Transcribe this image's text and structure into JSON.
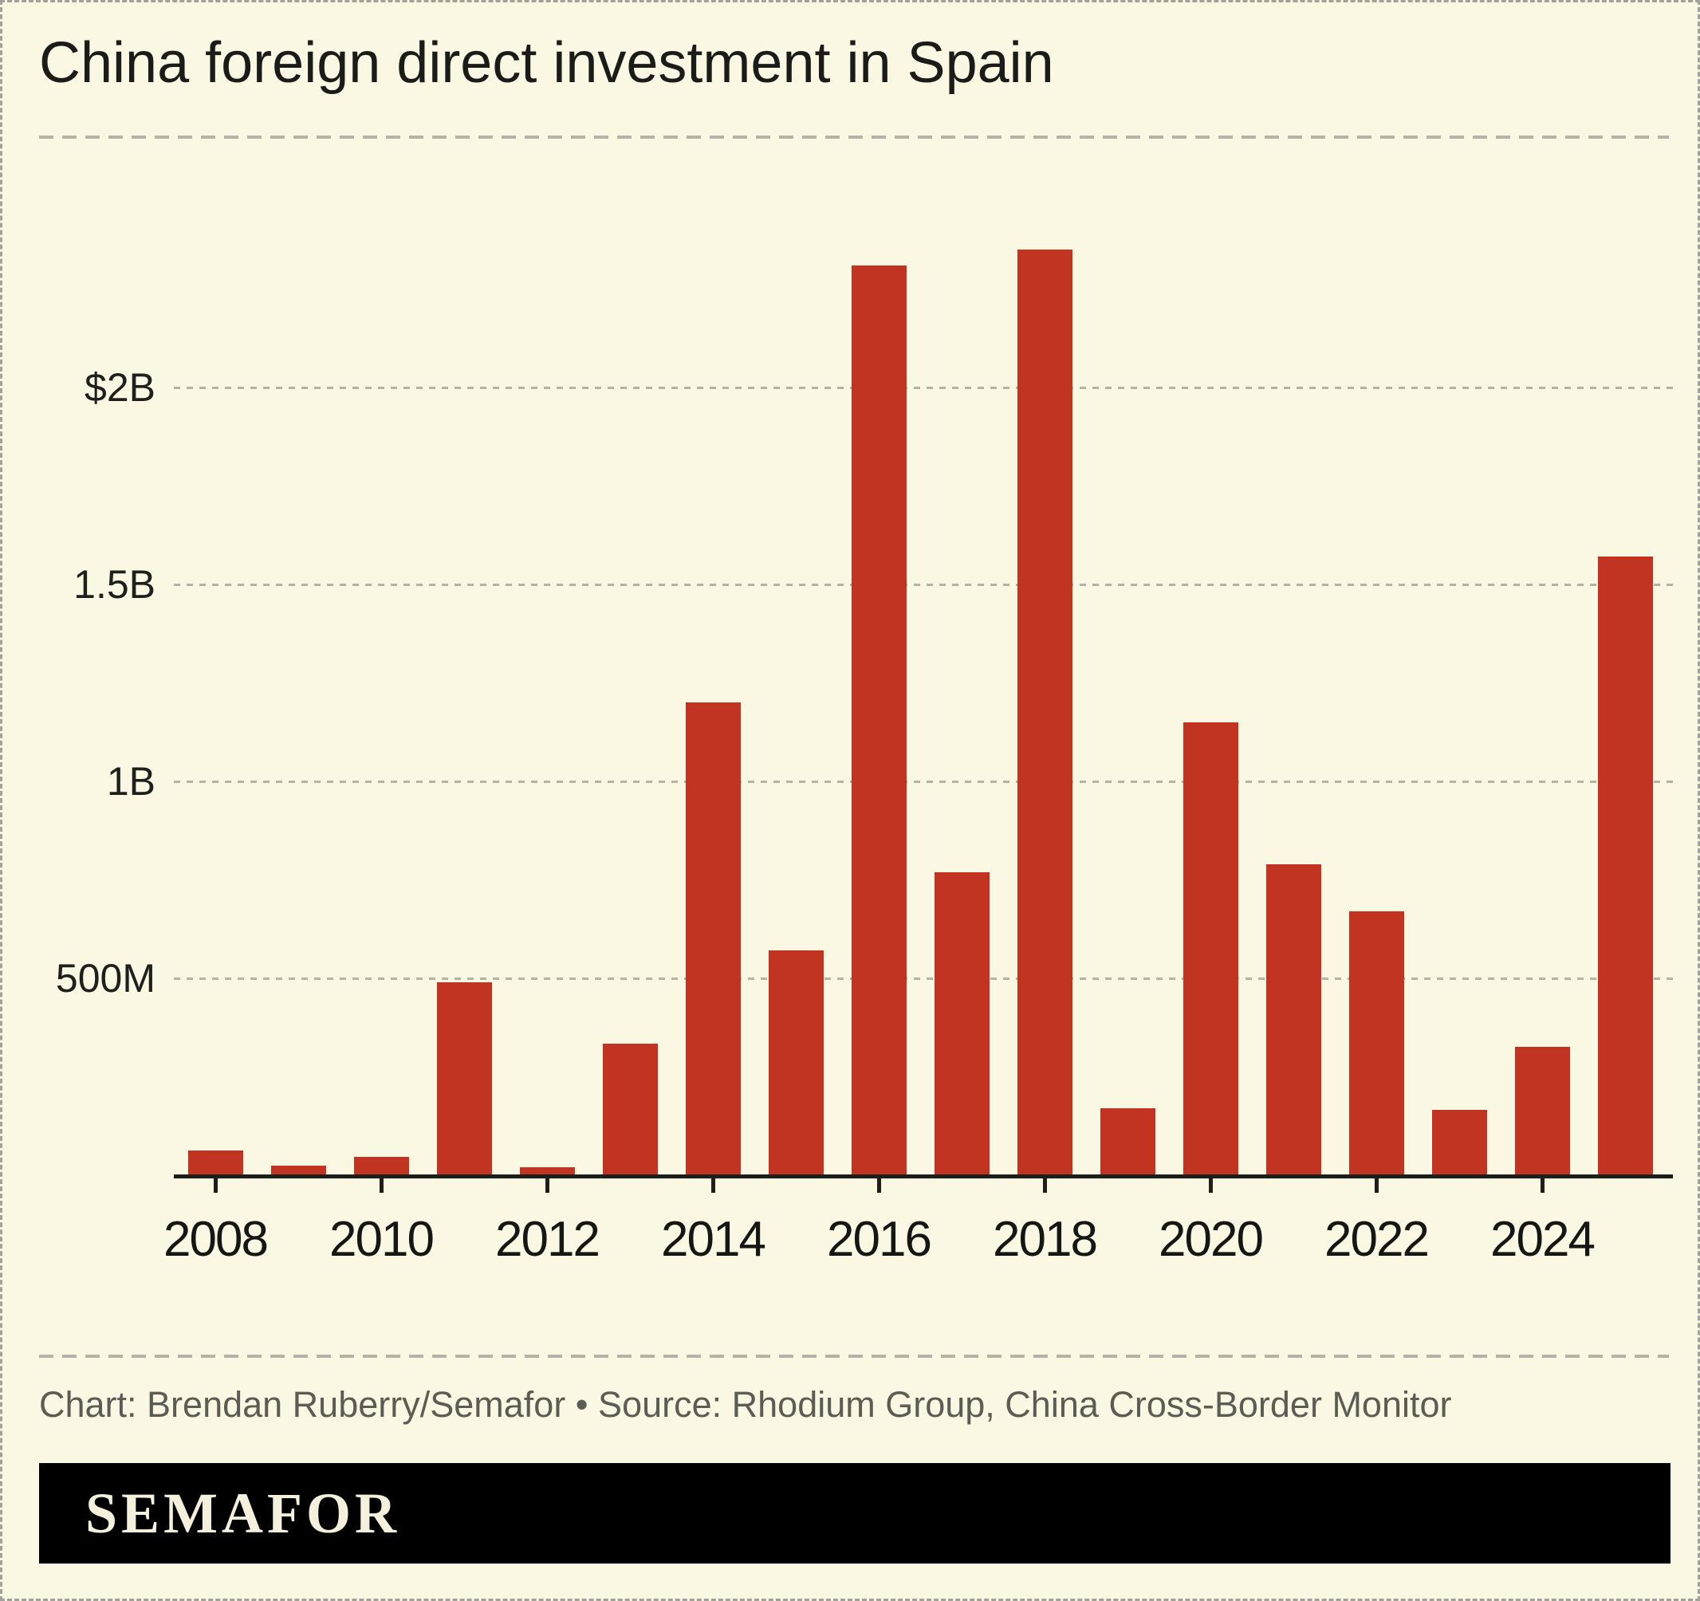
{
  "title": "China foreign direct investment in Spain",
  "caption": "Chart: Brendan Ruberry/Semafor • Source: Rhodium Group, China Cross-Border Monitor",
  "logo": "SEMAFOR",
  "colors": {
    "background": "#faf7e2",
    "bar": "#c13422",
    "axis": "#1d1d1a",
    "gridline": "#b3b2a8",
    "caption_text": "#5d5c54",
    "logo_background": "#000000",
    "logo_text": "#f4f0db",
    "outer_border": "#a2a299"
  },
  "chart_data": {
    "type": "bar",
    "title": "China foreign direct investment in Spain",
    "unit": "USD millions",
    "categories": [
      "2008",
      "2009",
      "2010",
      "2011",
      "2012",
      "2013",
      "2014",
      "2015",
      "2016",
      "2017",
      "2018",
      "2019",
      "2020",
      "2021",
      "2022",
      "2023",
      "2024",
      "2025"
    ],
    "values": [
      63,
      25,
      47,
      490,
      20,
      335,
      1200,
      570,
      2310,
      770,
      2350,
      170,
      1150,
      790,
      670,
      165,
      325,
      1570
    ],
    "xlabel": "",
    "ylabel": "",
    "ylim": [
      0,
      2400
    ],
    "yticks": [
      {
        "label": "500M",
        "value": 500
      },
      {
        "label": "1B",
        "value": 1000
      },
      {
        "label": "1.5B",
        "value": 1500
      },
      {
        "label": "$2B",
        "value": 2000
      }
    ],
    "xtick_labels": [
      "2008",
      "2010",
      "2012",
      "2014",
      "2016",
      "2018",
      "2020",
      "2022",
      "2024"
    ],
    "grid": "horizontal-dashed",
    "legend": "none",
    "bar_color": "#c13422"
  }
}
